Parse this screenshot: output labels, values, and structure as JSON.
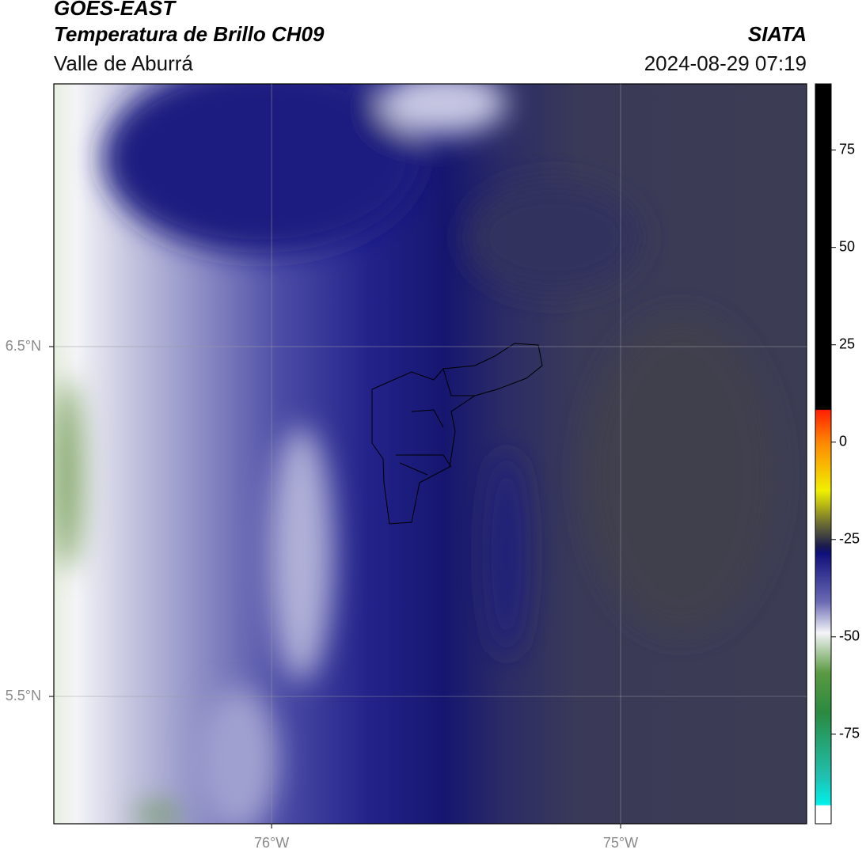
{
  "header": {
    "title": "GOES-EAST",
    "subtitle": "Temperatura de Brillo CH09",
    "region": "Valle de Aburrá",
    "agency": "SIATA",
    "timestamp": "2024-08-29 07:19"
  },
  "map": {
    "lonlim": [
      -76.624,
      -74.467
    ],
    "latlim": [
      5.136,
      7.251
    ],
    "lon_ticks": [
      {
        "value": -76,
        "label": "76°W"
      },
      {
        "value": -75,
        "label": "75°W"
      }
    ],
    "lat_ticks": [
      {
        "value": 6.5,
        "label": "6.5°N"
      },
      {
        "value": 5.5,
        "label": "5.5°N"
      }
    ],
    "grid": true
  },
  "colorbar": {
    "clim": [
      -98,
      92
    ],
    "ticks": [
      75,
      50,
      25,
      0,
      -25,
      -50,
      -75
    ]
  }
}
